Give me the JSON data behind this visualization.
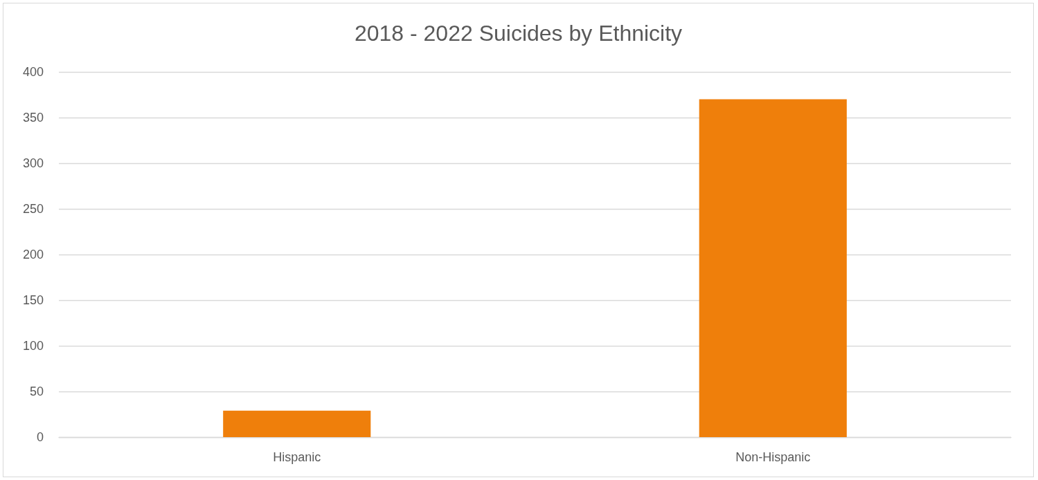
{
  "chart_data": {
    "type": "bar",
    "title": "2018 - 2022 Suicides by Ethnicity",
    "categories": [
      "Hispanic",
      "Non-Hispanic"
    ],
    "values": [
      29,
      370
    ],
    "color": "#ef7f0b",
    "ylim": [
      0,
      400
    ],
    "yticks": [
      0,
      50,
      100,
      150,
      200,
      250,
      300,
      350,
      400
    ],
    "grid": "y"
  }
}
